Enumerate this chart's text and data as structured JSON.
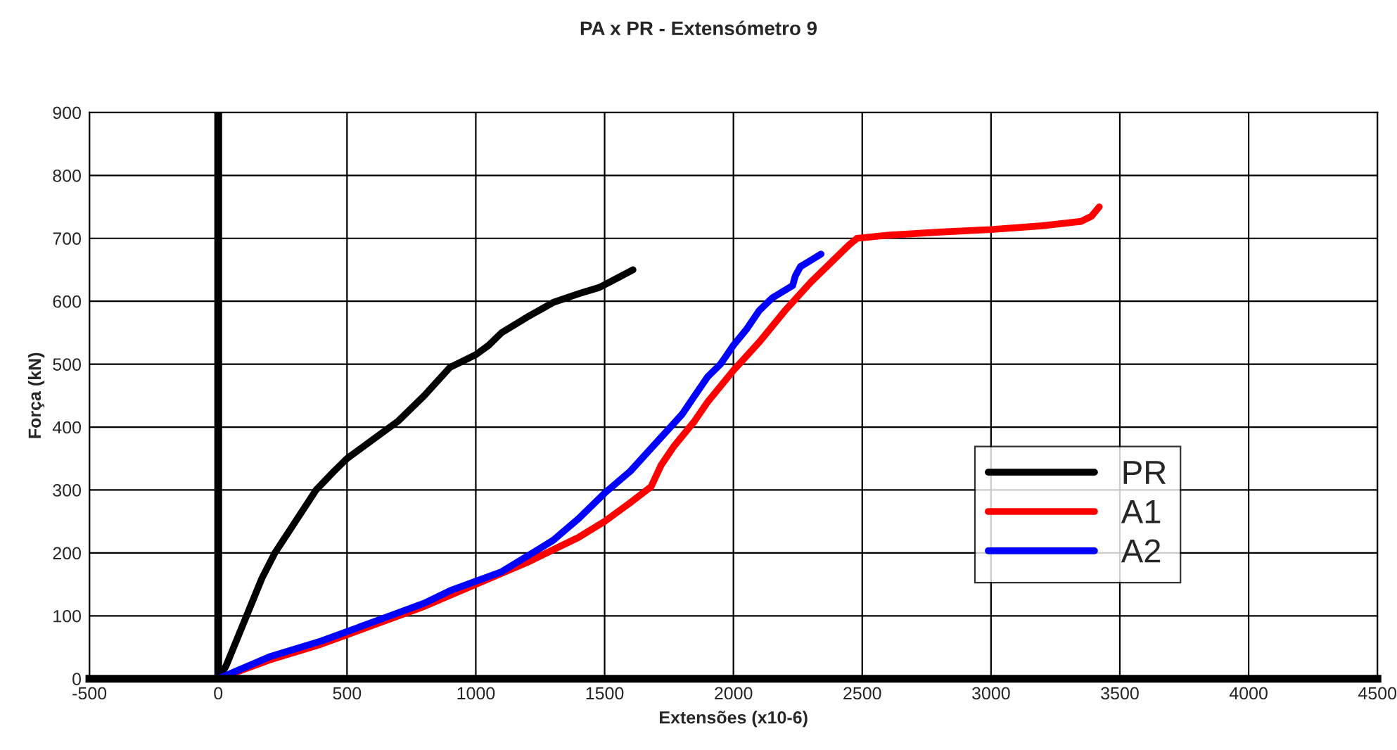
{
  "chart_data": {
    "type": "line",
    "title": "PA x PR - Extensómetro 9",
    "xlabel": "Extensões (x10-6)",
    "ylabel": "Força (kN)",
    "xlim": [
      -500,
      4500
    ],
    "ylim": [
      0,
      900
    ],
    "xticks": [
      -500,
      0,
      500,
      1000,
      1500,
      2000,
      2500,
      3000,
      3500,
      4000,
      4500
    ],
    "yticks": [
      0,
      100,
      200,
      300,
      400,
      500,
      600,
      700,
      800,
      900
    ],
    "grid": true,
    "legend": "right",
    "marker": "none",
    "line_style": "solid",
    "ref_lines": [
      {
        "axis": "x",
        "value": 0,
        "color": "#000000"
      }
    ],
    "series": [
      {
        "name": "PR",
        "color": "#000000",
        "x": [
          0,
          30,
          70,
          120,
          170,
          220,
          300,
          380,
          450,
          500,
          600,
          700,
          800,
          900,
          1000,
          1050,
          1100,
          1200,
          1300,
          1400,
          1480,
          1550,
          1610
        ],
        "values": [
          0,
          20,
          60,
          110,
          160,
          200,
          250,
          300,
          330,
          350,
          380,
          410,
          450,
          495,
          515,
          530,
          550,
          575,
          598,
          612,
          622,
          637,
          650
        ]
      },
      {
        "name": "A1",
        "color": "#ff0000",
        "x": [
          0,
          200,
          400,
          600,
          800,
          1000,
          1200,
          1400,
          1500,
          1600,
          1680,
          1720,
          1770,
          1850,
          1900,
          2000,
          2100,
          2200,
          2300,
          2400,
          2450,
          2480,
          2600,
          2800,
          3000,
          3200,
          3350,
          3390,
          3420
        ],
        "values": [
          0,
          30,
          55,
          85,
          115,
          150,
          185,
          225,
          250,
          280,
          305,
          340,
          370,
          410,
          440,
          490,
          535,
          585,
          630,
          670,
          690,
          700,
          705,
          710,
          714,
          720,
          727,
          735,
          750
        ]
      },
      {
        "name": "A2",
        "color": "#0000ff",
        "x": [
          0,
          200,
          400,
          600,
          800,
          900,
          1000,
          1100,
          1200,
          1300,
          1400,
          1500,
          1600,
          1700,
          1800,
          1850,
          1900,
          1950,
          2000,
          2050,
          2100,
          2150,
          2230,
          2240,
          2260,
          2300,
          2340
        ],
        "values": [
          0,
          35,
          60,
          90,
          120,
          140,
          155,
          170,
          195,
          220,
          255,
          295,
          330,
          375,
          420,
          450,
          480,
          500,
          530,
          555,
          585,
          605,
          625,
          640,
          655,
          665,
          675
        ]
      }
    ]
  }
}
